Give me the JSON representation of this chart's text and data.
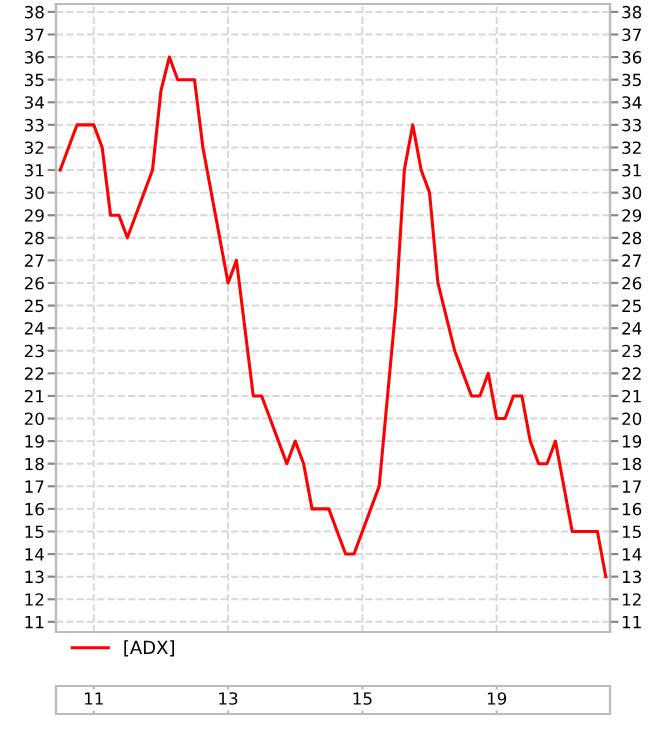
{
  "chart_data": {
    "type": "line",
    "categories": [
      null,
      null,
      null,
      null,
      "11",
      null,
      null,
      null,
      null,
      null,
      null,
      null,
      null,
      null,
      null,
      null,
      null,
      null,
      null,
      null,
      "13",
      null,
      null,
      null,
      null,
      null,
      null,
      null,
      null,
      null,
      null,
      null,
      null,
      null,
      null,
      null,
      "15",
      null,
      null,
      null,
      null,
      null,
      null,
      null,
      null,
      null,
      null,
      null,
      null,
      null,
      null,
      null,
      "19",
      null,
      null,
      null,
      null,
      null,
      null,
      null,
      null,
      null,
      null,
      null,
      null,
      null
    ],
    "series": [
      {
        "name": "[ADX]",
        "color": "#ff0000",
        "values": [
          31,
          32,
          33,
          33,
          33,
          32,
          29,
          29,
          28,
          29,
          30,
          31,
          34.5,
          36,
          35,
          35,
          35,
          32,
          30,
          28,
          26,
          27,
          24,
          21,
          21,
          20,
          19,
          18,
          19,
          18,
          16,
          16,
          16,
          15,
          14,
          14,
          15,
          16,
          17,
          21,
          25,
          31,
          33,
          31,
          30,
          26,
          24.5,
          23,
          22,
          21,
          21,
          22,
          20,
          20,
          21,
          21,
          19,
          18,
          18,
          19,
          17,
          15,
          15,
          15,
          15,
          13
        ]
      }
    ],
    "ylim": [
      10.55,
      38.35
    ],
    "yticks": [
      11,
      12,
      13,
      14,
      15,
      16,
      17,
      18,
      19,
      20,
      21,
      22,
      23,
      24,
      25,
      26,
      27,
      28,
      29,
      30,
      31,
      32,
      33,
      34,
      35,
      36,
      37,
      38
    ],
    "y2lim": [
      10.55,
      38.35
    ],
    "y2ticks": [
      11,
      12,
      13,
      14,
      15,
      16,
      17,
      18,
      19,
      20,
      21,
      22,
      23,
      24,
      25,
      26,
      27,
      28,
      29,
      30,
      31,
      32,
      33,
      34,
      35,
      36,
      37,
      38
    ],
    "grid": true,
    "legend": "bottom",
    "line_style": "solid",
    "marker": "none"
  }
}
